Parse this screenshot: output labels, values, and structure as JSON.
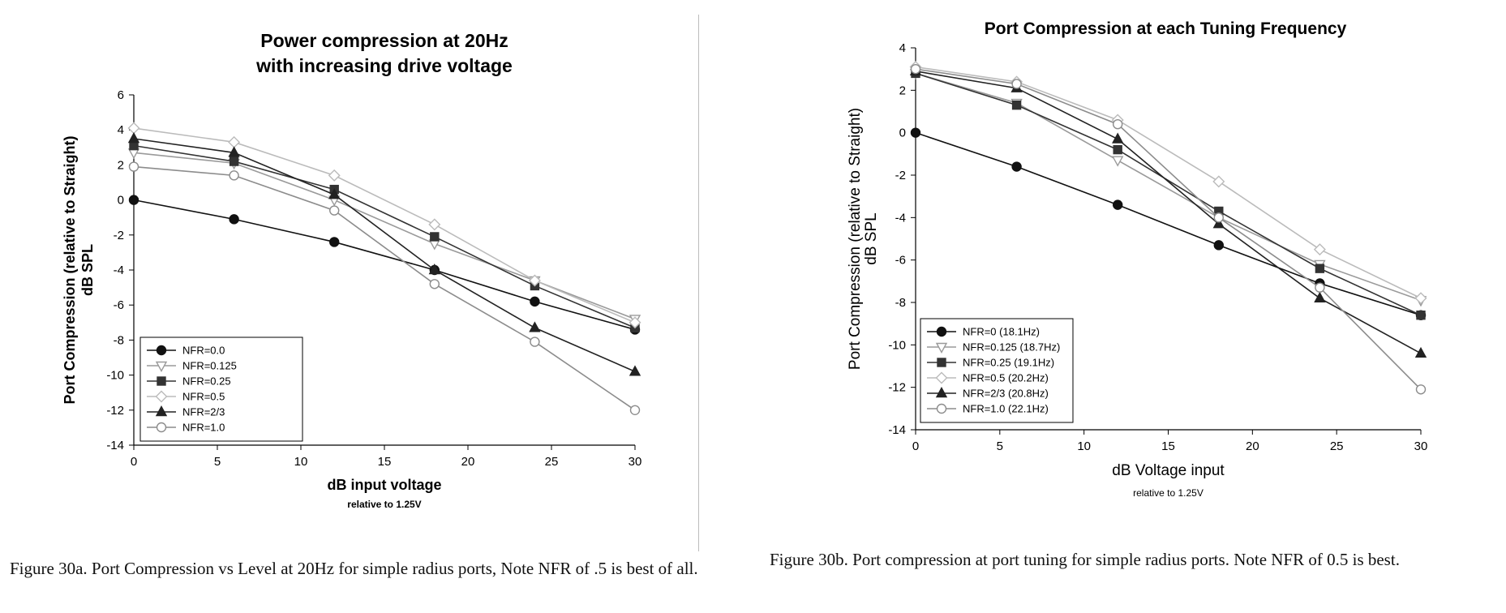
{
  "chart_data": [
    {
      "type": "line",
      "title": "Power compression at 20Hz",
      "subtitle": "with increasing drive voltage",
      "xlabel": "dB input voltage",
      "xlabel_note": "relative to 1.25V",
      "ylabel": "Port Compression (relative to Straight)",
      "ylabel2": "dB SPL",
      "xlim": [
        0,
        30
      ],
      "ylim": [
        -14,
        6
      ],
      "xticks": [
        0,
        5,
        10,
        15,
        20,
        25,
        30
      ],
      "yticks": [
        -14,
        -12,
        -10,
        -8,
        -6,
        -4,
        -2,
        0,
        2,
        4,
        6
      ],
      "grid": false,
      "legend_position": "bottom-left",
      "x": [
        0,
        6,
        12,
        18,
        24,
        30
      ],
      "series": [
        {
          "name": "NFR=0.0",
          "marker": "circle-filled",
          "color": "#111111",
          "values": [
            0,
            -1.1,
            -2.4,
            -4.0,
            -5.8,
            -7.4
          ]
        },
        {
          "name": "NFR=0.125",
          "marker": "triangle-down-open",
          "color": "#9a9a9a",
          "values": [
            2.7,
            2.1,
            0.0,
            -2.5,
            -4.6,
            -6.8
          ]
        },
        {
          "name": "NFR=0.25",
          "marker": "square-filled",
          "color": "#333333",
          "values": [
            3.1,
            2.2,
            0.6,
            -2.1,
            -4.9,
            -7.3
          ]
        },
        {
          "name": "NFR=0.5",
          "marker": "diamond-open",
          "color": "#bbbbbb",
          "values": [
            4.1,
            3.3,
            1.4,
            -1.4,
            -4.6,
            -7.0
          ]
        },
        {
          "name": "NFR=2/3",
          "marker": "triangle-up-filled",
          "color": "#222222",
          "values": [
            3.5,
            2.7,
            0.3,
            -4.0,
            -7.3,
            -9.8
          ]
        },
        {
          "name": "NFR=1.0",
          "marker": "circle-open",
          "color": "#8c8c8c",
          "values": [
            1.9,
            1.4,
            -0.6,
            -4.8,
            -8.1,
            -12.0
          ]
        }
      ]
    },
    {
      "type": "line",
      "title": "Port Compression at each Tuning Frequency",
      "xlabel": "dB Voltage input",
      "xlabel_note": "relative to 1.25V",
      "ylabel": "Port Compression (relative to Straight)",
      "ylabel2": "dB SPL",
      "xlim": [
        0,
        30
      ],
      "ylim": [
        -14,
        4
      ],
      "xticks": [
        0,
        5,
        10,
        15,
        20,
        25,
        30
      ],
      "yticks": [
        -14,
        -12,
        -10,
        -8,
        -6,
        -4,
        -2,
        0,
        2,
        4
      ],
      "grid": false,
      "legend_position": "bottom-left",
      "x": [
        0,
        6,
        12,
        18,
        24,
        30
      ],
      "series": [
        {
          "name": "NFR=0 (18.1Hz)",
          "marker": "circle-filled",
          "color": "#111111",
          "values": [
            0,
            -1.6,
            -3.4,
            -5.3,
            -7.1,
            -8.6
          ]
        },
        {
          "name": "NFR=0.125 (18.7Hz)",
          "marker": "triangle-down-open",
          "color": "#9a9a9a",
          "values": [
            2.8,
            1.4,
            -1.3,
            -4.0,
            -6.2,
            -7.9
          ]
        },
        {
          "name": "NFR=0.25 (19.1Hz)",
          "marker": "square-filled",
          "color": "#333333",
          "values": [
            2.8,
            1.3,
            -0.8,
            -3.7,
            -6.4,
            -8.6
          ]
        },
        {
          "name": "NFR=0.5 (20.2Hz)",
          "marker": "diamond-open",
          "color": "#bbbbbb",
          "values": [
            3.1,
            2.4,
            0.6,
            -2.3,
            -5.5,
            -7.8
          ]
        },
        {
          "name": "NFR=2/3 (20.8Hz)",
          "marker": "triangle-up-filled",
          "color": "#222222",
          "values": [
            2.9,
            2.1,
            -0.3,
            -4.3,
            -7.8,
            -10.4
          ]
        },
        {
          "name": "NFR=1.0 (22.1Hz)",
          "marker": "circle-open",
          "color": "#8c8c8c",
          "values": [
            3.0,
            2.3,
            0.4,
            -4.0,
            -7.3,
            -12.1
          ]
        }
      ]
    }
  ],
  "captions": {
    "a": "Figure 30a.  Port Compression vs Level at 20Hz for simple radius ports, Note NFR of .5 is best of all.",
    "b": "Figure 30b. Port compression at port tuning for simple radius ports. Note NFR of 0.5 is best."
  }
}
